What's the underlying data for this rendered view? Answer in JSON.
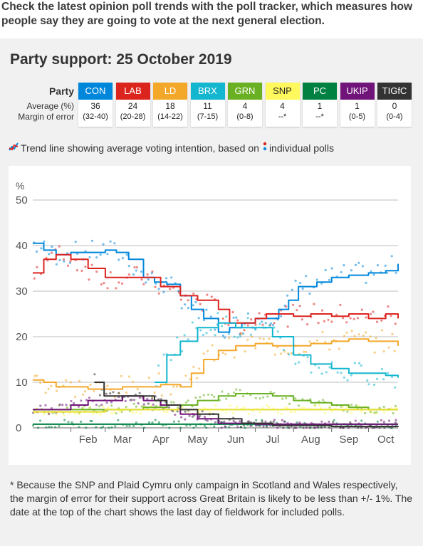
{
  "header": {
    "intro": "Check the latest opinion poll trends with the poll tracker, which measures how people say they are going to vote at the next general election."
  },
  "panel": {
    "title": "Party support: 25 October 2019",
    "table_labels": {
      "party": "Party",
      "average": "Average (%)",
      "moe": "Margin of error"
    },
    "parties": [
      {
        "code": "CON",
        "average": "36",
        "moe": "(32-40)",
        "color": "#0087dc",
        "text_color": "#ffffff"
      },
      {
        "code": "LAB",
        "average": "24",
        "moe": "(20-28)",
        "color": "#dc241f",
        "text_color": "#ffffff"
      },
      {
        "code": "LD",
        "average": "18",
        "moe": "(14-22)",
        "color": "#f4a82a",
        "text_color": "#ffffff"
      },
      {
        "code": "BRX",
        "average": "11",
        "moe": "(7-15)",
        "color": "#12b6cf",
        "text_color": "#ffffff"
      },
      {
        "code": "GRN",
        "average": "4",
        "moe": "(0-8)",
        "color": "#6ab023",
        "text_color": "#ffffff"
      },
      {
        "code": "SNP",
        "average": "4",
        "moe": "--*",
        "color": "#fff95d",
        "text_color": "#222222"
      },
      {
        "code": "PC",
        "average": "1",
        "moe": "--*",
        "color": "#008142",
        "text_color": "#ffffff"
      },
      {
        "code": "UKIP",
        "average": "1",
        "moe": "(0-5)",
        "color": "#70147a",
        "text_color": "#ffffff"
      },
      {
        "code": "TIGfC",
        "average": "0",
        "moe": "(0-4)",
        "color": "#333333",
        "text_color": "#ffffff"
      }
    ],
    "legend_text_a": "Trend line showing average voting intention, based on",
    "legend_text_b": "individual polls"
  },
  "footnote": "* Because the SNP and Plaid Cymru only campaign in Scotland and Wales respectively, the margin of error for their support across Great Britain is likely to be less than +/- 1%. The date at the top of the chart shows the last day of fieldwork for included polls.",
  "chart_data": {
    "type": "line",
    "ylabel": "%",
    "ylim": [
      0,
      50
    ],
    "yticks": [
      0,
      10,
      20,
      30,
      40,
      50
    ],
    "x_tick_labels": [
      "Feb",
      "Mar",
      "Apr",
      "May",
      "Jun",
      "Jul",
      "Aug",
      "Sep",
      "Oct"
    ],
    "x_tick_dates": [
      "2019-02-01",
      "2019-03-01",
      "2019-04-01",
      "2019-05-01",
      "2019-06-01",
      "2019-07-01",
      "2019-08-01",
      "2019-09-01",
      "2019-10-01"
    ],
    "xlim": [
      "2019-01-01",
      "2019-10-25"
    ],
    "grid": true,
    "series": [
      {
        "name": "CON",
        "color": "#0087dc",
        "points": [
          [
            "2019-01-01",
            40.5
          ],
          [
            "2019-01-10",
            39
          ],
          [
            "2019-01-20",
            38
          ],
          [
            "2019-02-01",
            38.5
          ],
          [
            "2019-02-15",
            38.5
          ],
          [
            "2019-03-01",
            39
          ],
          [
            "2019-03-10",
            38.5
          ],
          [
            "2019-03-20",
            37
          ],
          [
            "2019-04-01",
            33
          ],
          [
            "2019-04-10",
            32
          ],
          [
            "2019-04-20",
            31.5
          ],
          [
            "2019-05-01",
            29
          ],
          [
            "2019-05-10",
            26
          ],
          [
            "2019-05-20",
            24
          ],
          [
            "2019-06-01",
            21
          ],
          [
            "2019-06-10",
            22
          ],
          [
            "2019-06-20",
            23
          ],
          [
            "2019-07-01",
            24
          ],
          [
            "2019-07-10",
            24
          ],
          [
            "2019-07-20",
            26
          ],
          [
            "2019-07-28",
            28
          ],
          [
            "2019-08-05",
            31
          ],
          [
            "2019-08-20",
            32
          ],
          [
            "2019-09-01",
            33
          ],
          [
            "2019-09-15",
            33.5
          ],
          [
            "2019-10-01",
            34
          ],
          [
            "2019-10-15",
            34.5
          ],
          [
            "2019-10-25",
            36
          ]
        ]
      },
      {
        "name": "LAB",
        "color": "#dc241f",
        "points": [
          [
            "2019-01-01",
            34
          ],
          [
            "2019-01-10",
            37
          ],
          [
            "2019-01-20",
            38
          ],
          [
            "2019-02-01",
            37
          ],
          [
            "2019-02-15",
            35
          ],
          [
            "2019-03-01",
            33
          ],
          [
            "2019-03-15",
            33
          ],
          [
            "2019-04-01",
            33
          ],
          [
            "2019-04-15",
            31
          ],
          [
            "2019-05-01",
            29
          ],
          [
            "2019-05-15",
            28
          ],
          [
            "2019-06-01",
            26
          ],
          [
            "2019-06-10",
            23
          ],
          [
            "2019-06-20",
            23
          ],
          [
            "2019-07-01",
            24
          ],
          [
            "2019-07-10",
            25
          ],
          [
            "2019-07-20",
            25
          ],
          [
            "2019-08-01",
            24.5
          ],
          [
            "2019-08-15",
            25
          ],
          [
            "2019-09-01",
            24.5
          ],
          [
            "2019-09-15",
            25
          ],
          [
            "2019-10-01",
            24
          ],
          [
            "2019-10-15",
            25
          ],
          [
            "2019-10-25",
            24
          ]
        ]
      },
      {
        "name": "LD",
        "color": "#f4a82a",
        "points": [
          [
            "2019-01-01",
            10.5
          ],
          [
            "2019-01-10",
            10
          ],
          [
            "2019-01-20",
            9
          ],
          [
            "2019-02-01",
            9
          ],
          [
            "2019-02-15",
            8.5
          ],
          [
            "2019-03-01",
            8.5
          ],
          [
            "2019-03-15",
            9
          ],
          [
            "2019-04-01",
            9
          ],
          [
            "2019-04-15",
            9.5
          ],
          [
            "2019-05-01",
            9
          ],
          [
            "2019-05-10",
            12
          ],
          [
            "2019-05-20",
            15
          ],
          [
            "2019-06-01",
            17
          ],
          [
            "2019-06-15",
            18
          ],
          [
            "2019-07-01",
            18.5
          ],
          [
            "2019-07-15",
            18
          ],
          [
            "2019-08-01",
            18
          ],
          [
            "2019-08-15",
            18.5
          ],
          [
            "2019-09-01",
            19
          ],
          [
            "2019-09-15",
            19.5
          ],
          [
            "2019-10-01",
            19
          ],
          [
            "2019-10-15",
            19
          ],
          [
            "2019-10-25",
            18
          ]
        ]
      },
      {
        "name": "BRX",
        "color": "#12b6cf",
        "points": [
          [
            "2019-04-10",
            10
          ],
          [
            "2019-04-20",
            16
          ],
          [
            "2019-05-01",
            19
          ],
          [
            "2019-05-15",
            22
          ],
          [
            "2019-06-01",
            23
          ],
          [
            "2019-06-15",
            22
          ],
          [
            "2019-07-01",
            22
          ],
          [
            "2019-07-15",
            20
          ],
          [
            "2019-08-01",
            16
          ],
          [
            "2019-08-15",
            14
          ],
          [
            "2019-09-01",
            13
          ],
          [
            "2019-09-15",
            12
          ],
          [
            "2019-10-01",
            12
          ],
          [
            "2019-10-15",
            11.5
          ],
          [
            "2019-10-25",
            11
          ]
        ]
      },
      {
        "name": "GRN",
        "color": "#6ab023",
        "points": [
          [
            "2019-01-01",
            4
          ],
          [
            "2019-01-20",
            4
          ],
          [
            "2019-02-01",
            4
          ],
          [
            "2019-03-01",
            4
          ],
          [
            "2019-04-01",
            4.5
          ],
          [
            "2019-04-20",
            5
          ],
          [
            "2019-05-01",
            5
          ],
          [
            "2019-05-15",
            6
          ],
          [
            "2019-06-01",
            7
          ],
          [
            "2019-06-15",
            7.5
          ],
          [
            "2019-07-01",
            7.5
          ],
          [
            "2019-07-15",
            7
          ],
          [
            "2019-08-01",
            6
          ],
          [
            "2019-08-15",
            5.5
          ],
          [
            "2019-09-01",
            5
          ],
          [
            "2019-09-15",
            4.5
          ],
          [
            "2019-10-01",
            4
          ],
          [
            "2019-10-25",
            4
          ]
        ]
      },
      {
        "name": "SNP",
        "color": "#fff95d",
        "points": [
          [
            "2019-01-01",
            3.5
          ],
          [
            "2019-02-01",
            3.5
          ],
          [
            "2019-03-01",
            4
          ],
          [
            "2019-04-01",
            4
          ],
          [
            "2019-05-01",
            4
          ],
          [
            "2019-06-01",
            4
          ],
          [
            "2019-07-01",
            4
          ],
          [
            "2019-08-01",
            4
          ],
          [
            "2019-09-01",
            4
          ],
          [
            "2019-10-01",
            4
          ],
          [
            "2019-10-25",
            4
          ]
        ]
      },
      {
        "name": "PC",
        "color": "#008142",
        "points": [
          [
            "2019-01-01",
            0.8
          ],
          [
            "2019-03-01",
            0.8
          ],
          [
            "2019-05-01",
            0.8
          ],
          [
            "2019-07-01",
            0.7
          ],
          [
            "2019-09-01",
            0.8
          ],
          [
            "2019-10-25",
            0.8
          ]
        ]
      },
      {
        "name": "UKIP",
        "color": "#70147a",
        "points": [
          [
            "2019-01-01",
            4
          ],
          [
            "2019-01-15",
            4
          ],
          [
            "2019-02-01",
            5
          ],
          [
            "2019-02-15",
            6
          ],
          [
            "2019-03-01",
            6
          ],
          [
            "2019-03-15",
            7
          ],
          [
            "2019-04-01",
            6
          ],
          [
            "2019-04-15",
            5
          ],
          [
            "2019-05-01",
            3
          ],
          [
            "2019-05-15",
            2
          ],
          [
            "2019-06-01",
            1
          ],
          [
            "2019-07-01",
            0.8
          ],
          [
            "2019-08-01",
            0.8
          ],
          [
            "2019-09-01",
            0.8
          ],
          [
            "2019-10-25",
            0.8
          ]
        ]
      },
      {
        "name": "TIGfC",
        "color": "#333333",
        "points": [
          [
            "2019-02-20",
            10
          ],
          [
            "2019-02-28",
            7
          ],
          [
            "2019-03-10",
            7
          ],
          [
            "2019-03-25",
            7
          ],
          [
            "2019-04-10",
            6
          ],
          [
            "2019-04-20",
            5
          ],
          [
            "2019-05-01",
            4
          ],
          [
            "2019-05-15",
            3
          ],
          [
            "2019-06-01",
            2
          ],
          [
            "2019-06-20",
            1
          ],
          [
            "2019-07-15",
            0.5
          ],
          [
            "2019-09-01",
            0.3
          ],
          [
            "2019-10-25",
            0.2
          ]
        ]
      }
    ]
  }
}
